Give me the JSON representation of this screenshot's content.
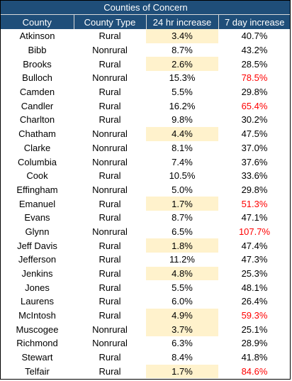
{
  "title": "Counties of Concern",
  "headers": [
    "County",
    "County Type",
    "24 hr increase",
    "7 day increase"
  ],
  "colors": {
    "header_bg": "#1f4e79",
    "header_text": "#ffffff",
    "highlight_bg": "#fff2cc",
    "alert_text": "#ff0000"
  },
  "rows": [
    {
      "county": "Atkinson",
      "type": "Rural",
      "day": "3.4%",
      "week": "40.7%",
      "day_highlight": true,
      "week_alert": false
    },
    {
      "county": "Bibb",
      "type": "Nonrural",
      "day": "8.7%",
      "week": "43.2%",
      "day_highlight": false,
      "week_alert": false
    },
    {
      "county": "Brooks",
      "type": "Rural",
      "day": "2.6%",
      "week": "28.5%",
      "day_highlight": true,
      "week_alert": false
    },
    {
      "county": "Bulloch",
      "type": "Nonrural",
      "day": "15.3%",
      "week": "78.5%",
      "day_highlight": false,
      "week_alert": true
    },
    {
      "county": "Camden",
      "type": "Rural",
      "day": "5.5%",
      "week": "29.8%",
      "day_highlight": false,
      "week_alert": false
    },
    {
      "county": "Candler",
      "type": "Rural",
      "day": "16.2%",
      "week": "65.4%",
      "day_highlight": false,
      "week_alert": true
    },
    {
      "county": "Charlton",
      "type": "Rural",
      "day": "9.8%",
      "week": "30.2%",
      "day_highlight": false,
      "week_alert": false
    },
    {
      "county": "Chatham",
      "type": "Nonrural",
      "day": "4.4%",
      "week": "47.5%",
      "day_highlight": true,
      "week_alert": false
    },
    {
      "county": "Clarke",
      "type": "Nonrural",
      "day": "8.1%",
      "week": "37.0%",
      "day_highlight": false,
      "week_alert": false
    },
    {
      "county": "Columbia",
      "type": "Nonrural",
      "day": "7.4%",
      "week": "37.6%",
      "day_highlight": false,
      "week_alert": false
    },
    {
      "county": "Cook",
      "type": "Rural",
      "day": "10.5%",
      "week": "33.6%",
      "day_highlight": false,
      "week_alert": false
    },
    {
      "county": "Effingham",
      "type": "Nonrural",
      "day": "5.0%",
      "week": "29.8%",
      "day_highlight": false,
      "week_alert": false
    },
    {
      "county": "Emanuel",
      "type": "Rural",
      "day": "1.7%",
      "week": "51.3%",
      "day_highlight": true,
      "week_alert": true
    },
    {
      "county": "Evans",
      "type": "Rural",
      "day": "8.7%",
      "week": "47.1%",
      "day_highlight": false,
      "week_alert": false
    },
    {
      "county": "Glynn",
      "type": "Nonrural",
      "day": "6.5%",
      "week": "107.7%",
      "day_highlight": false,
      "week_alert": true
    },
    {
      "county": "Jeff Davis",
      "type": "Rural",
      "day": "1.8%",
      "week": "47.4%",
      "day_highlight": true,
      "week_alert": false
    },
    {
      "county": "Jefferson",
      "type": "Rural",
      "day": "11.2%",
      "week": "47.3%",
      "day_highlight": false,
      "week_alert": false
    },
    {
      "county": "Jenkins",
      "type": "Rural",
      "day": "4.8%",
      "week": "25.3%",
      "day_highlight": true,
      "week_alert": false
    },
    {
      "county": "Jones",
      "type": "Rural",
      "day": "5.5%",
      "week": "48.1%",
      "day_highlight": false,
      "week_alert": false
    },
    {
      "county": "Laurens",
      "type": "Rural",
      "day": "6.0%",
      "week": "26.4%",
      "day_highlight": false,
      "week_alert": false
    },
    {
      "county": "McIntosh",
      "type": "Rural",
      "day": "4.9%",
      "week": "59.3%",
      "day_highlight": true,
      "week_alert": true
    },
    {
      "county": "Muscogee",
      "type": "Nonrural",
      "day": "3.7%",
      "week": "25.1%",
      "day_highlight": true,
      "week_alert": false
    },
    {
      "county": "Richmond",
      "type": "Nonrural",
      "day": "6.3%",
      "week": "28.9%",
      "day_highlight": false,
      "week_alert": false
    },
    {
      "county": "Stewart",
      "type": "Rural",
      "day": "8.4%",
      "week": "41.8%",
      "day_highlight": false,
      "week_alert": false
    },
    {
      "county": "Telfair",
      "type": "Rural",
      "day": "1.7%",
      "week": "84.6%",
      "day_highlight": true,
      "week_alert": true
    }
  ]
}
